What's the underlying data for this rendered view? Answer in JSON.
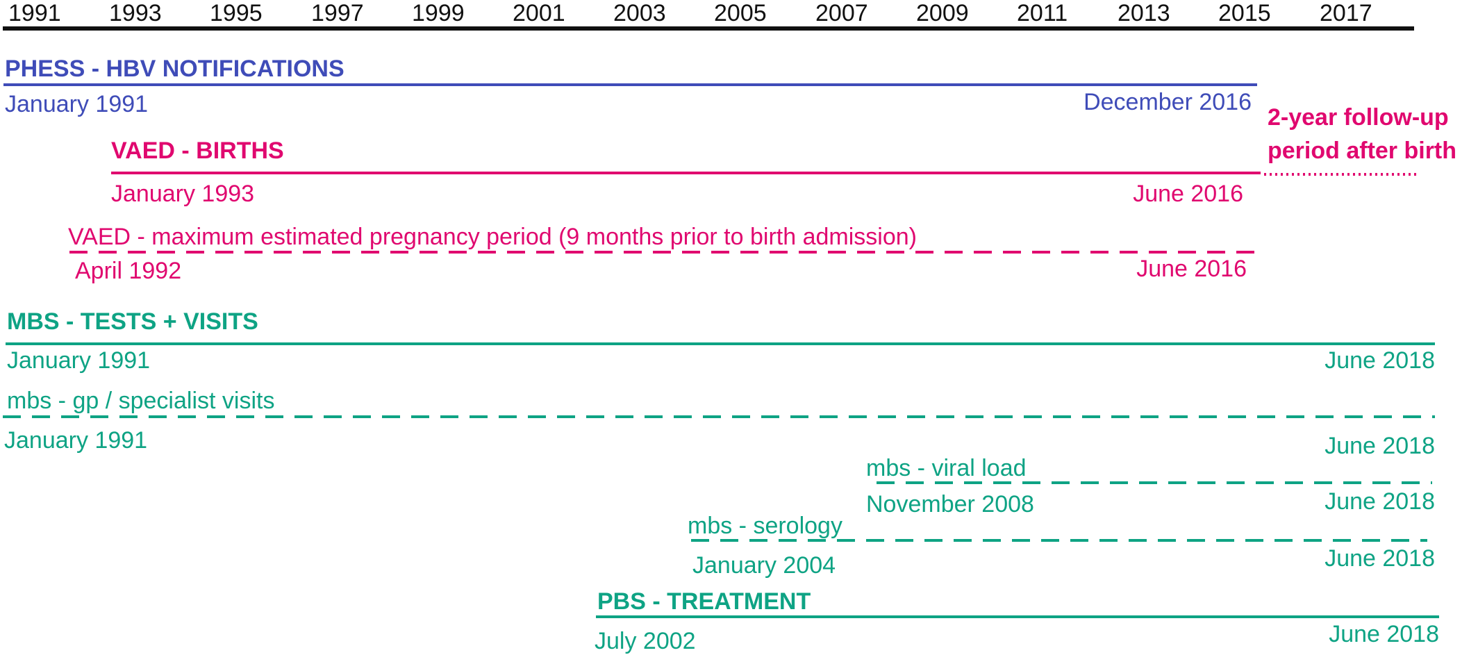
{
  "timeline": {
    "years": [
      "1991",
      "1993",
      "1995",
      "1997",
      "1999",
      "2001",
      "2003",
      "2005",
      "2007",
      "2009",
      "2011",
      "2013",
      "2015",
      "2017"
    ]
  },
  "colors": {
    "axis": "#111111",
    "phess": "#3f4cb8",
    "vaed": "#e0086f",
    "mbs": "#0ea384"
  },
  "datasets": {
    "phess": {
      "title": "PHESS - HBV NOTIFICATIONS",
      "start": "January 1991",
      "end": "December 2016"
    },
    "vaed_births": {
      "title": "VAED - BIRTHS",
      "start": "January 1993",
      "end": "June 2016",
      "followup_line1": "2-year follow-up",
      "followup_line2": "period after birth"
    },
    "vaed_pregnancy": {
      "label": "VAED - maximum estimated pregnancy period (9 months prior to birth admission)",
      "start": "April 1992",
      "end": "June 2016"
    },
    "mbs": {
      "title": "MBS - TESTS + VISITS",
      "start": "January 1991",
      "end": "June 2018"
    },
    "mbs_gp": {
      "label": "mbs - gp / specialist visits",
      "start": "January 1991",
      "end": "June 2018"
    },
    "mbs_viral": {
      "label": "mbs - viral load",
      "start": "November 2008",
      "end": "June 2018"
    },
    "mbs_serology": {
      "label": "mbs - serology",
      "start": "January 2004",
      "end": "June 2018"
    },
    "pbs": {
      "title": "PBS - TREATMENT",
      "start": "July 2002",
      "end": "June 2018"
    }
  }
}
